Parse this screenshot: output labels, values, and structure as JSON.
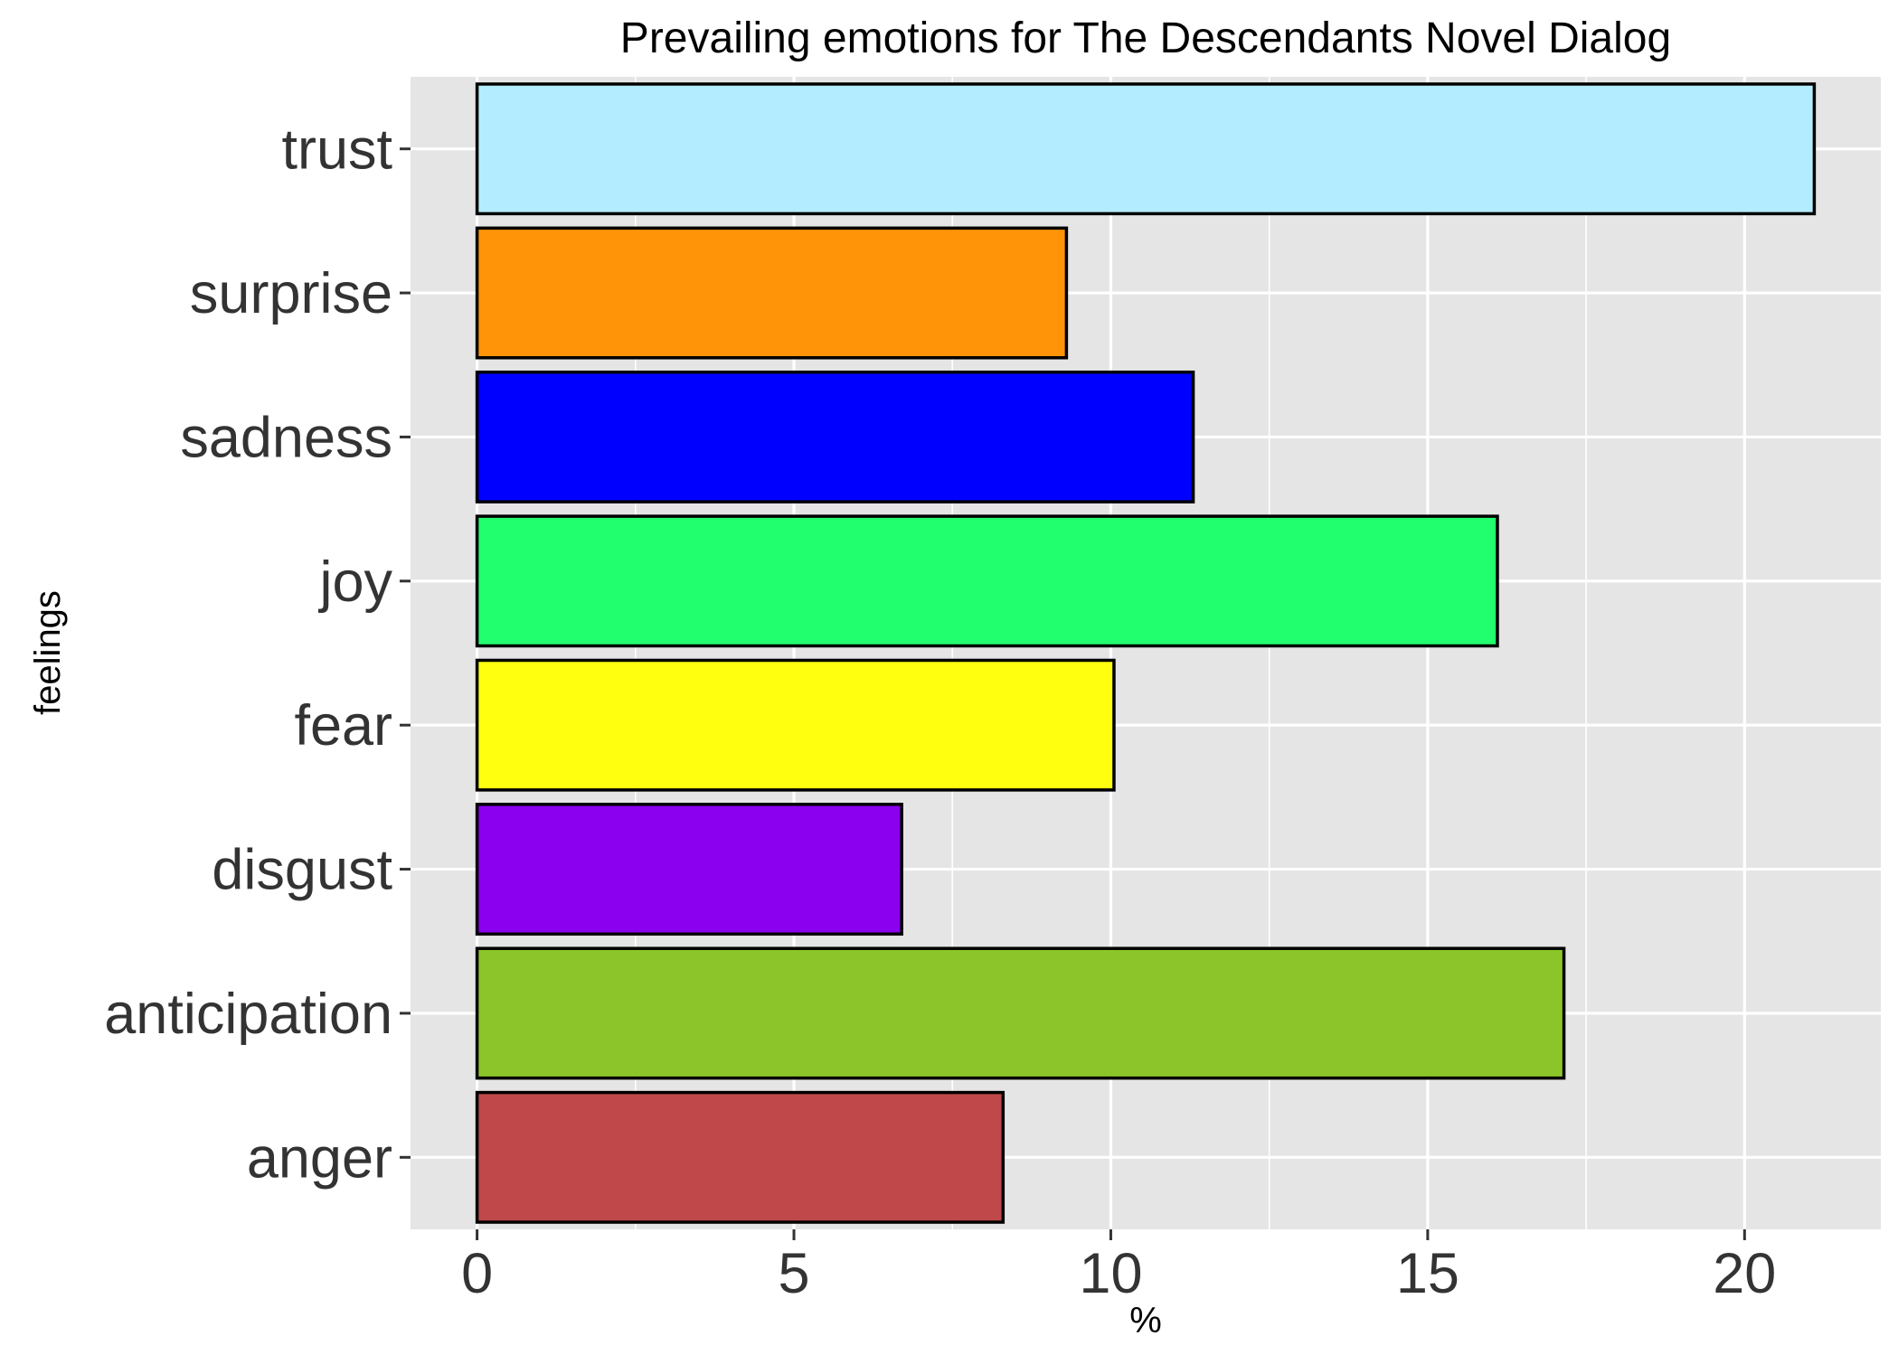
{
  "chart_data": {
    "type": "bar",
    "orientation": "horizontal",
    "title": "Prevailing emotions for The Descendants Novel Dialog",
    "xlabel": "%",
    "ylabel": "feelings",
    "categories": [
      "anger",
      "anticipation",
      "disgust",
      "fear",
      "joy",
      "sadness",
      "surprise",
      "trust"
    ],
    "values": [
      8.3,
      17.15,
      6.7,
      10.05,
      16.1,
      11.3,
      9.3,
      21.1
    ],
    "colors": [
      "#C0484A",
      "#8BC52A",
      "#8B00EE",
      "#FFFF0F",
      "#22FF6E",
      "#0000FF",
      "#FF9408",
      "#B3ECFE"
    ],
    "xticks": [
      0,
      5,
      10,
      15,
      20
    ],
    "xticklabels": [
      "0",
      "5",
      "10",
      "15",
      "20"
    ],
    "xlim": [
      -1.05,
      22.15
    ],
    "grid": true,
    "legend": "none",
    "panel_background": "#E5E5E5"
  }
}
